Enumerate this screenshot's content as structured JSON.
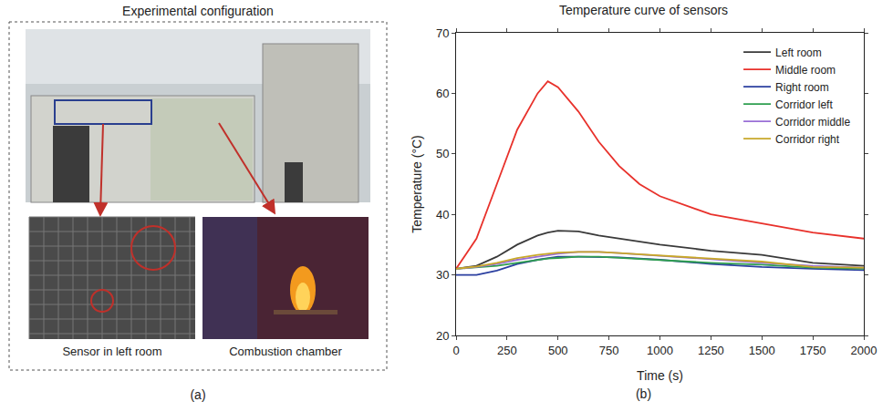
{
  "panel_a": {
    "panel_label": "(a)",
    "title": "Experimental configuration",
    "captions": [
      "Sensor in left room",
      "Combustion chamber"
    ]
  },
  "chart_data": {
    "type": "line",
    "panel_label": "(b)",
    "title": "Temperature curve of sensors",
    "x_label": "Time (s)",
    "y_label": "Temperature (°C)",
    "x": [
      0,
      100,
      200,
      300,
      400,
      450,
      500,
      600,
      700,
      800,
      900,
      1000,
      1250,
      1500,
      1750,
      2000
    ],
    "series": [
      {
        "name": "Left room",
        "color": "#3a3a3a",
        "values": [
          31,
          31.5,
          33,
          35,
          36.5,
          37,
          37.3,
          37.2,
          36.5,
          36,
          35.5,
          35,
          34,
          33.3,
          32,
          31.5
        ]
      },
      {
        "name": "Middle room",
        "color": "#e8312b",
        "values": [
          31,
          36,
          45,
          54,
          60,
          62,
          61,
          57,
          52,
          48,
          45,
          43,
          40,
          38.5,
          37,
          36
        ]
      },
      {
        "name": "Right room",
        "color": "#2b3fa0",
        "values": [
          30,
          30,
          30.7,
          31.8,
          32.5,
          32.8,
          33,
          33,
          33,
          32.9,
          32.7,
          32.5,
          31.8,
          31.3,
          31,
          30.8
        ]
      },
      {
        "name": "Corridor left",
        "color": "#2e9e4f",
        "values": [
          31,
          31.2,
          31.5,
          32,
          32.5,
          32.7,
          32.8,
          33,
          33,
          32.8,
          32.6,
          32.5,
          32,
          31.7,
          31.2,
          31
        ]
      },
      {
        "name": "Corridor middle",
        "color": "#9a6fd6",
        "values": [
          31,
          31.3,
          31.8,
          32.5,
          33,
          33.3,
          33.5,
          33.8,
          33.8,
          33.6,
          33.4,
          33.2,
          32.6,
          32,
          31.5,
          31.2
        ]
      },
      {
        "name": "Corridor right",
        "color": "#c8a82a",
        "values": [
          31,
          31.4,
          32,
          32.8,
          33.3,
          33.5,
          33.7,
          33.8,
          33.8,
          33.6,
          33.4,
          33.2,
          32.8,
          32.2,
          31.3,
          31.2
        ]
      }
    ],
    "xlim": [
      0,
      2000
    ],
    "xticks": [
      0,
      250,
      500,
      750,
      1000,
      1250,
      1500,
      1750,
      2000
    ],
    "ylim": [
      20,
      70
    ],
    "yticks": [
      20,
      30,
      40,
      50,
      60,
      70
    ],
    "grid": false,
    "legend": "top-right"
  }
}
